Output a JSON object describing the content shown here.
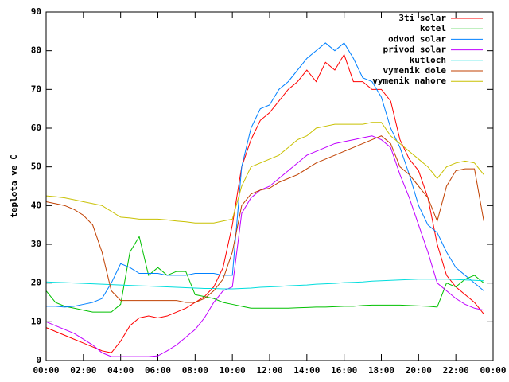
{
  "chart_data": {
    "type": "line",
    "ylabel": "teplota ve C",
    "x": [
      0,
      0.5,
      1,
      1.5,
      2,
      2.5,
      3,
      3.5,
      4,
      4.5,
      5,
      5.5,
      6,
      6.5,
      7,
      7.5,
      8,
      8.5,
      9,
      9.5,
      10,
      10.5,
      11,
      11.5,
      12,
      12.5,
      13,
      13.5,
      14,
      14.5,
      15,
      15.5,
      16,
      16.5,
      17,
      17.5,
      18,
      18.5,
      19,
      19.5,
      20,
      20.5,
      21,
      21.5,
      22,
      22.5,
      23,
      23.5
    ],
    "xlim": [
      0,
      24
    ],
    "xticks": [
      {
        "value": 0,
        "label": "00:00"
      },
      {
        "value": 2,
        "label": "02:00"
      },
      {
        "value": 4,
        "label": "04:00"
      },
      {
        "value": 6,
        "label": "06:00"
      },
      {
        "value": 8,
        "label": "08:00"
      },
      {
        "value": 10,
        "label": "10:00"
      },
      {
        "value": 12,
        "label": "12:00"
      },
      {
        "value": 14,
        "label": "14:00"
      },
      {
        "value": 16,
        "label": "16:00"
      },
      {
        "value": 18,
        "label": "18:00"
      },
      {
        "value": 20,
        "label": "20:00"
      },
      {
        "value": 22,
        "label": "22:00"
      },
      {
        "value": 24,
        "label": "00:00"
      }
    ],
    "ylim": [
      0,
      90
    ],
    "yticks": [
      0,
      10,
      20,
      30,
      40,
      50,
      60,
      70,
      80,
      90
    ],
    "grid": false,
    "legend": "top-right",
    "series": [
      {
        "name": "3ti solar",
        "color": "#ff0000",
        "values": [
          8.5,
          7.5,
          6.5,
          5.5,
          4.5,
          3.5,
          2.5,
          2,
          5,
          9,
          11,
          11.5,
          11,
          11.5,
          12.5,
          13.5,
          15,
          16.5,
          19,
          24,
          35,
          50,
          57,
          62,
          64,
          67,
          70,
          72,
          75,
          72,
          77,
          75,
          79,
          72,
          72,
          70,
          70,
          67,
          57,
          52,
          49,
          42,
          30,
          22,
          19,
          17,
          15,
          12
        ]
      },
      {
        "name": "kotel",
        "color": "#00c000",
        "values": [
          18,
          15,
          14,
          13.5,
          13,
          12.5,
          12.5,
          12.5,
          14.5,
          28,
          32,
          22,
          24,
          22,
          23,
          23,
          17,
          16.5,
          16,
          15,
          14.5,
          14,
          13.5,
          13.5,
          13.5,
          13.5,
          13.5,
          13.6,
          13.7,
          13.8,
          13.8,
          13.9,
          14,
          14,
          14.2,
          14.3,
          14.3,
          14.3,
          14.3,
          14.2,
          14.1,
          14,
          13.8,
          20,
          19,
          21,
          22,
          20
        ]
      },
      {
        "name": "odvod solar",
        "color": "#0080ff",
        "values": [
          14,
          14,
          13.8,
          14,
          14.5,
          15,
          16,
          20,
          25,
          24,
          22.5,
          22.5,
          22.5,
          22,
          22,
          22,
          22.5,
          22.5,
          22.5,
          22,
          22,
          50,
          60,
          65,
          66,
          70,
          72,
          75,
          78,
          80,
          82,
          80,
          82,
          78,
          73,
          72,
          68,
          60,
          55,
          48,
          40,
          35,
          33,
          28,
          24,
          22,
          20,
          18
        ]
      },
      {
        "name": "privod solar",
        "color": "#c000ff",
        "values": [
          10,
          9,
          8,
          7,
          5.5,
          4,
          2,
          1,
          1,
          1,
          1,
          1,
          1.2,
          2.5,
          4,
          6,
          8,
          11,
          15,
          18,
          19,
          38,
          42,
          44,
          45,
          47,
          49,
          51,
          53,
          54,
          55,
          56,
          56.5,
          57,
          57.5,
          58,
          57,
          55,
          48,
          42,
          35,
          28,
          20,
          18,
          16,
          14.5,
          13.5,
          13
        ]
      },
      {
        "name": "kutloch",
        "color": "#00dddd",
        "values": [
          20.3,
          20.2,
          20.1,
          20,
          19.9,
          19.8,
          19.7,
          19.6,
          19.5,
          19.4,
          19.3,
          19.2,
          19.1,
          19,
          18.9,
          18.8,
          18.7,
          18.6,
          18.6,
          18.5,
          18.5,
          18.6,
          18.7,
          18.9,
          19,
          19.1,
          19.3,
          19.4,
          19.5,
          19.7,
          19.8,
          19.9,
          20.1,
          20.2,
          20.3,
          20.5,
          20.6,
          20.7,
          20.8,
          20.9,
          21,
          21,
          21,
          21,
          20.9,
          20.8,
          20.7,
          20.6
        ]
      },
      {
        "name": "vymenik dole",
        "color": "#c04000",
        "values": [
          41,
          40.5,
          40,
          39,
          37.5,
          35,
          28,
          18,
          15.5,
          15.5,
          15.5,
          15.5,
          15.5,
          15.5,
          15.5,
          15,
          15,
          16,
          18,
          21,
          28,
          40,
          43,
          44,
          44.5,
          46,
          47,
          48,
          49.5,
          51,
          52,
          53,
          54,
          55,
          56,
          57,
          58,
          56,
          50,
          48,
          45,
          42,
          36,
          45,
          49,
          49.5,
          49.5,
          36
        ]
      },
      {
        "name": "vymenik nahore",
        "color": "#c8c000",
        "values": [
          42.5,
          42.3,
          42,
          41.5,
          41,
          40.5,
          40,
          38.5,
          37,
          36.8,
          36.5,
          36.5,
          36.5,
          36.3,
          36,
          35.8,
          35.5,
          35.5,
          35.5,
          36,
          36.5,
          45,
          50,
          51,
          52,
          53,
          55,
          57,
          58,
          60,
          60.5,
          61,
          61,
          61,
          61,
          61.5,
          61.5,
          58,
          56,
          54,
          52,
          50,
          47,
          50,
          51,
          51.5,
          51,
          48
        ]
      }
    ]
  }
}
